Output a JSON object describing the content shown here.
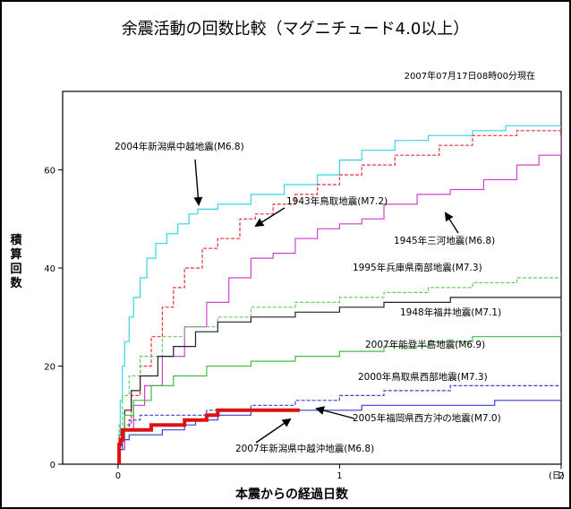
{
  "chart_data": {
    "type": "line",
    "title": "余震活動の回数比較（マグニチュード4.0以上）",
    "timestamp": "2007年07月17日08時00分現在",
    "xlabel": "本震からの経過日数",
    "ylabel": "積算回数",
    "x_unit": "(日)",
    "xlim": [
      -0.25,
      2
    ],
    "ylim": [
      0,
      76
    ],
    "x_ticks": [
      "0",
      "1",
      "2"
    ],
    "y_ticks": [
      "0",
      "20",
      "40",
      "60"
    ],
    "grid": false,
    "series": [
      {
        "name": "2004年新潟県中越地震(M6.8)",
        "color": "#33d6e6",
        "style": "solid",
        "points": [
          [
            0,
            0
          ],
          [
            0.005,
            6
          ],
          [
            0.01,
            13
          ],
          [
            0.02,
            20
          ],
          [
            0.03,
            25
          ],
          [
            0.05,
            30
          ],
          [
            0.07,
            34
          ],
          [
            0.1,
            38
          ],
          [
            0.13,
            42
          ],
          [
            0.17,
            45
          ],
          [
            0.22,
            47
          ],
          [
            0.27,
            49
          ],
          [
            0.32,
            51
          ],
          [
            0.36,
            52
          ],
          [
            0.45,
            53
          ],
          [
            0.6,
            55
          ],
          [
            0.75,
            57
          ],
          [
            0.9,
            59
          ],
          [
            1.0,
            62
          ],
          [
            1.1,
            64
          ],
          [
            1.25,
            66
          ],
          [
            1.4,
            67
          ],
          [
            1.5,
            67
          ],
          [
            1.6,
            68
          ],
          [
            1.75,
            69
          ],
          [
            1.9,
            69
          ],
          [
            2.0,
            69
          ]
        ]
      },
      {
        "name": "1943年鳥取地震(M7.2)",
        "color": "#e8333a",
        "style": "dashed",
        "points": [
          [
            0,
            0
          ],
          [
            0.005,
            3
          ],
          [
            0.03,
            8
          ],
          [
            0.06,
            14
          ],
          [
            0.1,
            20
          ],
          [
            0.15,
            26
          ],
          [
            0.2,
            32
          ],
          [
            0.25,
            36
          ],
          [
            0.3,
            40
          ],
          [
            0.38,
            44
          ],
          [
            0.45,
            46
          ],
          [
            0.55,
            50
          ],
          [
            0.62,
            51
          ],
          [
            0.7,
            53
          ],
          [
            0.8,
            55
          ],
          [
            0.9,
            57
          ],
          [
            1.0,
            59
          ],
          [
            1.1,
            61
          ],
          [
            1.25,
            63
          ],
          [
            1.45,
            65
          ],
          [
            1.6,
            67
          ],
          [
            1.8,
            68
          ],
          [
            2.0,
            69
          ]
        ]
      },
      {
        "name": "1945年三河地震(M6.8)",
        "color": "#cc44cc",
        "style": "solid",
        "points": [
          [
            0,
            0
          ],
          [
            0.01,
            3
          ],
          [
            0.03,
            7
          ],
          [
            0.07,
            12
          ],
          [
            0.12,
            16
          ],
          [
            0.2,
            22
          ],
          [
            0.3,
            28
          ],
          [
            0.4,
            33
          ],
          [
            0.5,
            38
          ],
          [
            0.6,
            42
          ],
          [
            0.7,
            43
          ],
          [
            0.8,
            46
          ],
          [
            0.9,
            48
          ],
          [
            1.0,
            49
          ],
          [
            1.1,
            50
          ],
          [
            1.2,
            53
          ],
          [
            1.35,
            55
          ],
          [
            1.5,
            56
          ],
          [
            1.65,
            58
          ],
          [
            1.8,
            61
          ],
          [
            1.9,
            63
          ],
          [
            2.0,
            67
          ]
        ]
      },
      {
        "name": "1995年兵庫県南部地震(M7.3)",
        "color": "#66cc66",
        "style": "dashed",
        "points": [
          [
            0,
            0
          ],
          [
            0.005,
            8
          ],
          [
            0.02,
            14
          ],
          [
            0.05,
            18
          ],
          [
            0.1,
            22
          ],
          [
            0.2,
            26
          ],
          [
            0.3,
            28
          ],
          [
            0.45,
            30
          ],
          [
            0.6,
            32
          ],
          [
            0.8,
            33
          ],
          [
            1.0,
            34
          ],
          [
            1.2,
            35
          ],
          [
            1.4,
            36
          ],
          [
            1.6,
            37
          ],
          [
            1.8,
            38
          ],
          [
            2.0,
            38
          ]
        ]
      },
      {
        "name": "1948年福井地震(M7.1)",
        "color": "#222222",
        "style": "solid",
        "points": [
          [
            0,
            0
          ],
          [
            0.005,
            6
          ],
          [
            0.03,
            11
          ],
          [
            0.06,
            15
          ],
          [
            0.1,
            18
          ],
          [
            0.18,
            22
          ],
          [
            0.25,
            24
          ],
          [
            0.35,
            27
          ],
          [
            0.45,
            29
          ],
          [
            0.6,
            30
          ],
          [
            0.8,
            31
          ],
          [
            1.0,
            32
          ],
          [
            1.2,
            33
          ],
          [
            1.5,
            34
          ],
          [
            2.0,
            34
          ]
        ]
      },
      {
        "name": "2007年能登半島地震(M6.9)",
        "color": "#44bb44",
        "style": "solid",
        "points": [
          [
            0,
            0
          ],
          [
            0.005,
            6
          ],
          [
            0.03,
            10
          ],
          [
            0.07,
            13
          ],
          [
            0.15,
            16
          ],
          [
            0.25,
            18
          ],
          [
            0.4,
            20
          ],
          [
            0.6,
            21
          ],
          [
            0.8,
            22
          ],
          [
            1.0,
            23
          ],
          [
            1.2,
            24
          ],
          [
            1.4,
            25
          ],
          [
            1.6,
            26
          ],
          [
            1.8,
            26
          ],
          [
            2.0,
            27
          ]
        ]
      },
      {
        "name": "2000年鳥取県西部地震(M7.3)",
        "color": "#3344cc",
        "style": "dashed",
        "points": [
          [
            0,
            0
          ],
          [
            0.005,
            4
          ],
          [
            0.02,
            7
          ],
          [
            0.05,
            9
          ],
          [
            0.1,
            10
          ],
          [
            0.25,
            10
          ],
          [
            0.4,
            11
          ],
          [
            0.6,
            12
          ],
          [
            0.8,
            13
          ],
          [
            1.0,
            14
          ],
          [
            1.2,
            15
          ],
          [
            1.5,
            16
          ],
          [
            2.0,
            16
          ]
        ]
      },
      {
        "name": "2005年福岡県西方沖の地震(M7.0)",
        "color": "#3344cc",
        "style": "solid",
        "points": [
          [
            0,
            0
          ],
          [
            0.005,
            3
          ],
          [
            0.02,
            5
          ],
          [
            0.05,
            6
          ],
          [
            0.1,
            6
          ],
          [
            0.2,
            7
          ],
          [
            0.3,
            8
          ],
          [
            0.35,
            9
          ],
          [
            0.45,
            10
          ],
          [
            0.6,
            11
          ],
          [
            0.9,
            11
          ],
          [
            1.1,
            12
          ],
          [
            1.4,
            12
          ],
          [
            1.7,
            13
          ],
          [
            2.0,
            13
          ]
        ]
      },
      {
        "name": "2007年新潟県中越沖地震(M6.8)",
        "color": "#dd1111",
        "style": "bold",
        "points": [
          [
            0,
            0
          ],
          [
            0.005,
            4
          ],
          [
            0.01,
            5
          ],
          [
            0.02,
            7
          ],
          [
            0.04,
            7
          ],
          [
            0.06,
            7
          ],
          [
            0.15,
            8
          ],
          [
            0.23,
            8
          ],
          [
            0.3,
            9
          ],
          [
            0.4,
            10
          ],
          [
            0.45,
            11
          ],
          [
            0.55,
            11
          ],
          [
            0.7,
            11
          ],
          [
            0.8,
            11
          ],
          [
            0.82,
            11
          ]
        ]
      }
    ]
  }
}
